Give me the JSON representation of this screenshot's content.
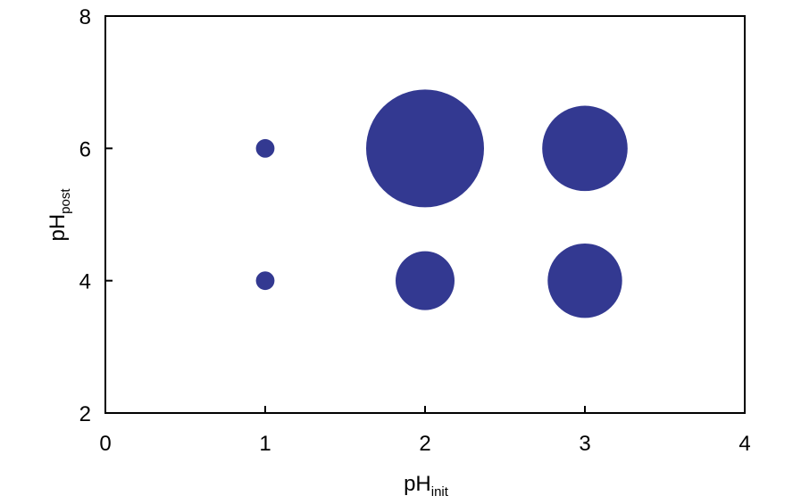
{
  "chart_data": {
    "type": "scatter",
    "subtype": "bubble",
    "title": "",
    "xlabel": {
      "main": "pH",
      "sub": "init"
    },
    "ylabel": {
      "main": "pH",
      "sub": "post"
    },
    "xlim": [
      0,
      4
    ],
    "ylim": [
      2,
      8
    ],
    "xticks": [
      "0",
      "1",
      "2",
      "3",
      "4"
    ],
    "yticks": [
      "2",
      "4",
      "6",
      "8"
    ],
    "grid": false,
    "legend": "none",
    "bubble_color": "#333991",
    "points": [
      {
        "x": 1,
        "y": 6,
        "size": 1
      },
      {
        "x": 1,
        "y": 4,
        "size": 1
      },
      {
        "x": 2,
        "y": 6,
        "size": 40
      },
      {
        "x": 2,
        "y": 4,
        "size": 10
      },
      {
        "x": 3,
        "y": 6,
        "size": 21
      },
      {
        "x": 3,
        "y": 4,
        "size": 16
      }
    ]
  }
}
